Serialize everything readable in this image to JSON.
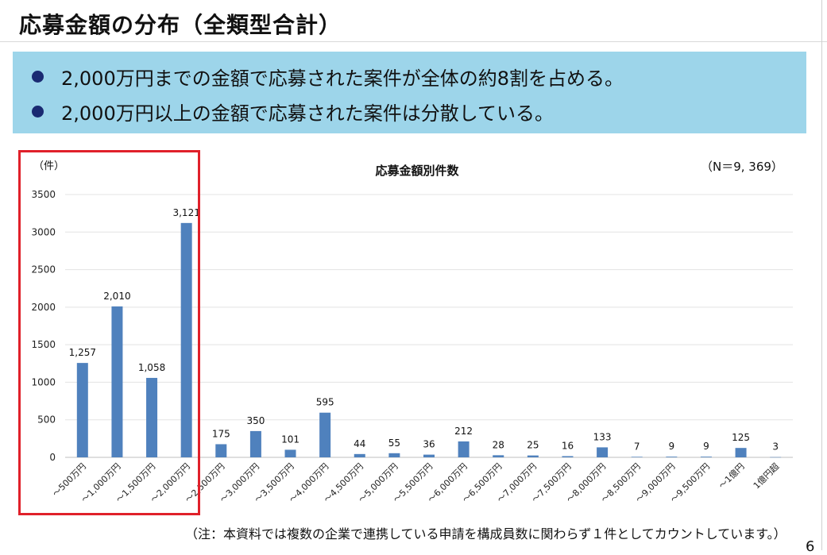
{
  "page": {
    "title": "応募金額の分布（全類型合計）",
    "bullets": [
      "2,000万円までの金額で応募された案件が全体の約8割を占める。",
      "2,000万円以上の金額で応募された案件は分散している。"
    ],
    "note": "（注：本資料では複数の企業で連携している申請を構成員数に関わらず１件としてカウントしています。）",
    "page_number": "6"
  },
  "colors": {
    "bar": "#4f81bd",
    "summary_bg": "#9dd5ea",
    "bullet": "#1a2a72",
    "highlight": "#e0202a"
  },
  "chart_data": {
    "type": "bar",
    "title": "応募金額別件数",
    "unit_label": "（件）",
    "n_label": "（N＝9, 369）",
    "ylim": [
      0,
      3500
    ],
    "yticks": [
      0,
      500,
      1000,
      1500,
      2000,
      2500,
      3000,
      3500
    ],
    "grid": true,
    "categories": [
      "～500万円",
      "～1,000万円",
      "～1,500万円",
      "～2,000万円",
      "～2,500万円",
      "～3,000万円",
      "～3,500万円",
      "～4,000万円",
      "～4,500万円",
      "～5,000万円",
      "～5,500万円",
      "～6,000万円",
      "～6,500万円",
      "～7,000万円",
      "～7,500万円",
      "～8,000万円",
      "～8,500万円",
      "～9,000万円",
      "～9,500万円",
      "～1億円",
      "1億円超"
    ],
    "values": [
      1257,
      2010,
      1058,
      3121,
      175,
      350,
      101,
      595,
      44,
      55,
      36,
      212,
      28,
      25,
      16,
      133,
      7,
      9,
      9,
      125,
      3
    ],
    "value_labels": [
      "1,257",
      "2,010",
      "1,058",
      "3,121",
      "175",
      "350",
      "101",
      "595",
      "44",
      "55",
      "36",
      "212",
      "28",
      "25",
      "16",
      "133",
      "7",
      "9",
      "9",
      "125",
      "3"
    ],
    "highlighted_categories": [
      "～500万円",
      "～1,000万円",
      "～1,500万円",
      "～2,000万円"
    ]
  }
}
